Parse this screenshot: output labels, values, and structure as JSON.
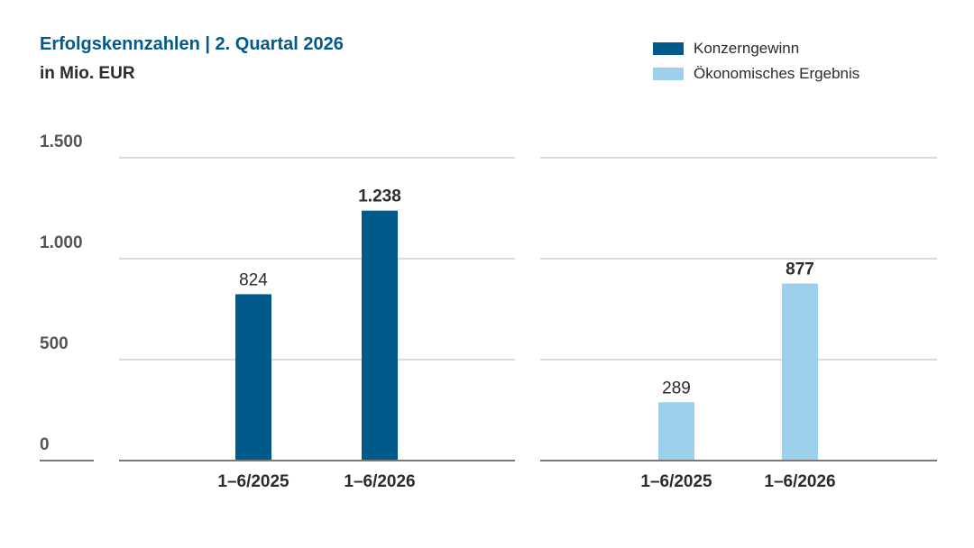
{
  "title": "Erfolgskennzahlen | 2. Quartal 2026",
  "subtitle": "in Mio. EUR",
  "legend": [
    {
      "label": "Konzerngewinn",
      "color": "#005a8c"
    },
    {
      "label": "Ökonomisches Ergebnis",
      "color": "#9dd0ec"
    }
  ],
  "chart_data": [
    {
      "type": "bar",
      "series": [
        {
          "name": "Konzerngewinn",
          "values": [
            824,
            1238
          ]
        }
      ],
      "categories": [
        "1–6/2025",
        "1–6/2026"
      ],
      "value_labels": [
        "824",
        "1.238"
      ],
      "emphasized": [
        false,
        true
      ],
      "ylim": [
        0,
        1500
      ],
      "yticks": [
        0,
        500,
        1000,
        1500
      ],
      "ytick_labels": [
        "0",
        "500",
        "1.000",
        "1.500"
      ],
      "color": "#005a8c",
      "grid": true
    },
    {
      "type": "bar",
      "series": [
        {
          "name": "Ökonomisches Ergebnis",
          "values": [
            289,
            877
          ]
        }
      ],
      "categories": [
        "1–6/2025",
        "1–6/2026"
      ],
      "value_labels": [
        "289",
        "877"
      ],
      "emphasized": [
        false,
        true
      ],
      "ylim": [
        0,
        1500
      ],
      "color": "#9dd0ec",
      "grid": true
    }
  ]
}
